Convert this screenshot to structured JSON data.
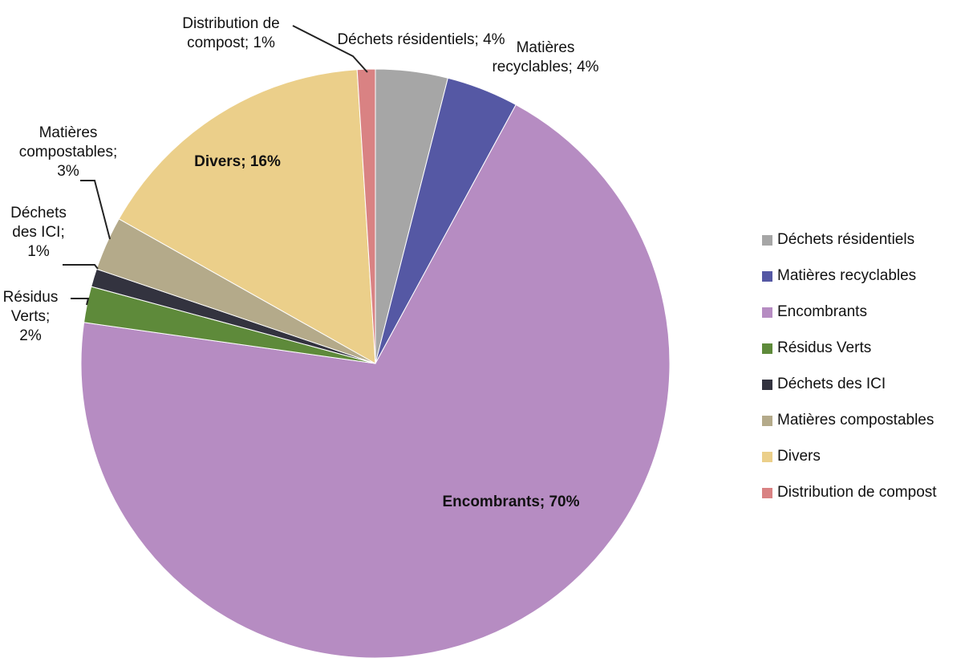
{
  "chart_data": {
    "type": "pie",
    "categories": [
      "Déchets résidentiels",
      "Matières recyclables",
      "Encombrants",
      "Résidus Verts",
      "Déchets des ICI",
      "Matières compostables",
      "Divers",
      "Distribution de compost"
    ],
    "values": [
      4,
      4,
      70,
      2,
      1,
      3,
      16,
      1
    ],
    "value_labels": [
      "Déchets résidentiels; 4%",
      "Matières recyclables; 4%",
      "Encombrants; 70%",
      "Résidus Verts; 2%",
      "Déchets des ICI; 1%",
      "Matières compostables; 3%",
      "Divers; 16%",
      "Distribution de compost; 1%"
    ],
    "colors": [
      "#a6a6a6",
      "#5558a4",
      "#b68cc2",
      "#5e8a3a",
      "#33333f",
      "#b4aa8a",
      "#ebcf8a",
      "#d98283"
    ],
    "legend": "right"
  }
}
